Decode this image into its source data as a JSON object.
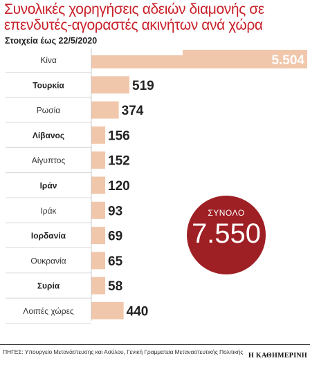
{
  "title": "Συνολικές χορηγήσεις αδειών διαμονής σε επενδυτές-αγοραστές ακινήτων ανά χώρα",
  "subtitle": "Στοιχεία έως 22/5/2020",
  "colors": {
    "bar": "#f1c7ab",
    "accent": "#c8212a",
    "circle": "#9e1f24"
  },
  "chart_data": {
    "type": "bar",
    "orientation": "horizontal",
    "categories": [
      "Κίνα",
      "Τουρκία",
      "Ρωσία",
      "Λίβανος",
      "Αίγυπτος",
      "Ιράν",
      "Ιράκ",
      "Ιορδανία",
      "Ουκρανία",
      "Συρία",
      "Λοιπές χώρες"
    ],
    "bold_categories": [
      "Τουρκία",
      "Λίβανος",
      "Ιράν",
      "Ιορδανία",
      "Συρία"
    ],
    "values": [
      5504,
      519,
      374,
      156,
      152,
      120,
      93,
      69,
      65,
      58,
      440
    ],
    "value_labels": [
      "5.504",
      "519",
      "374",
      "156",
      "152",
      "120",
      "93",
      "69",
      "65",
      "58",
      "440"
    ],
    "title": "Συνολικές χορηγήσεις αδειών διαμονής σε επενδυτές-αγοραστές ακινήτων ανά χώρα",
    "xlabel": "",
    "ylabel": "",
    "grid": false,
    "legend": "none",
    "scale_note": "first bar truncated"
  },
  "total": {
    "label": "ΣΥΝΟΛΟ",
    "value": "7.550"
  },
  "source": "ΠΗΓΕΣ: Υπουργείο Μετανάστευσης και Ασύλου, Γενική Γραμματεία Μεταναστευτικής Πολιτικής",
  "brand": "Η ΚΑΘΗΜΕΡΙΝΗ"
}
